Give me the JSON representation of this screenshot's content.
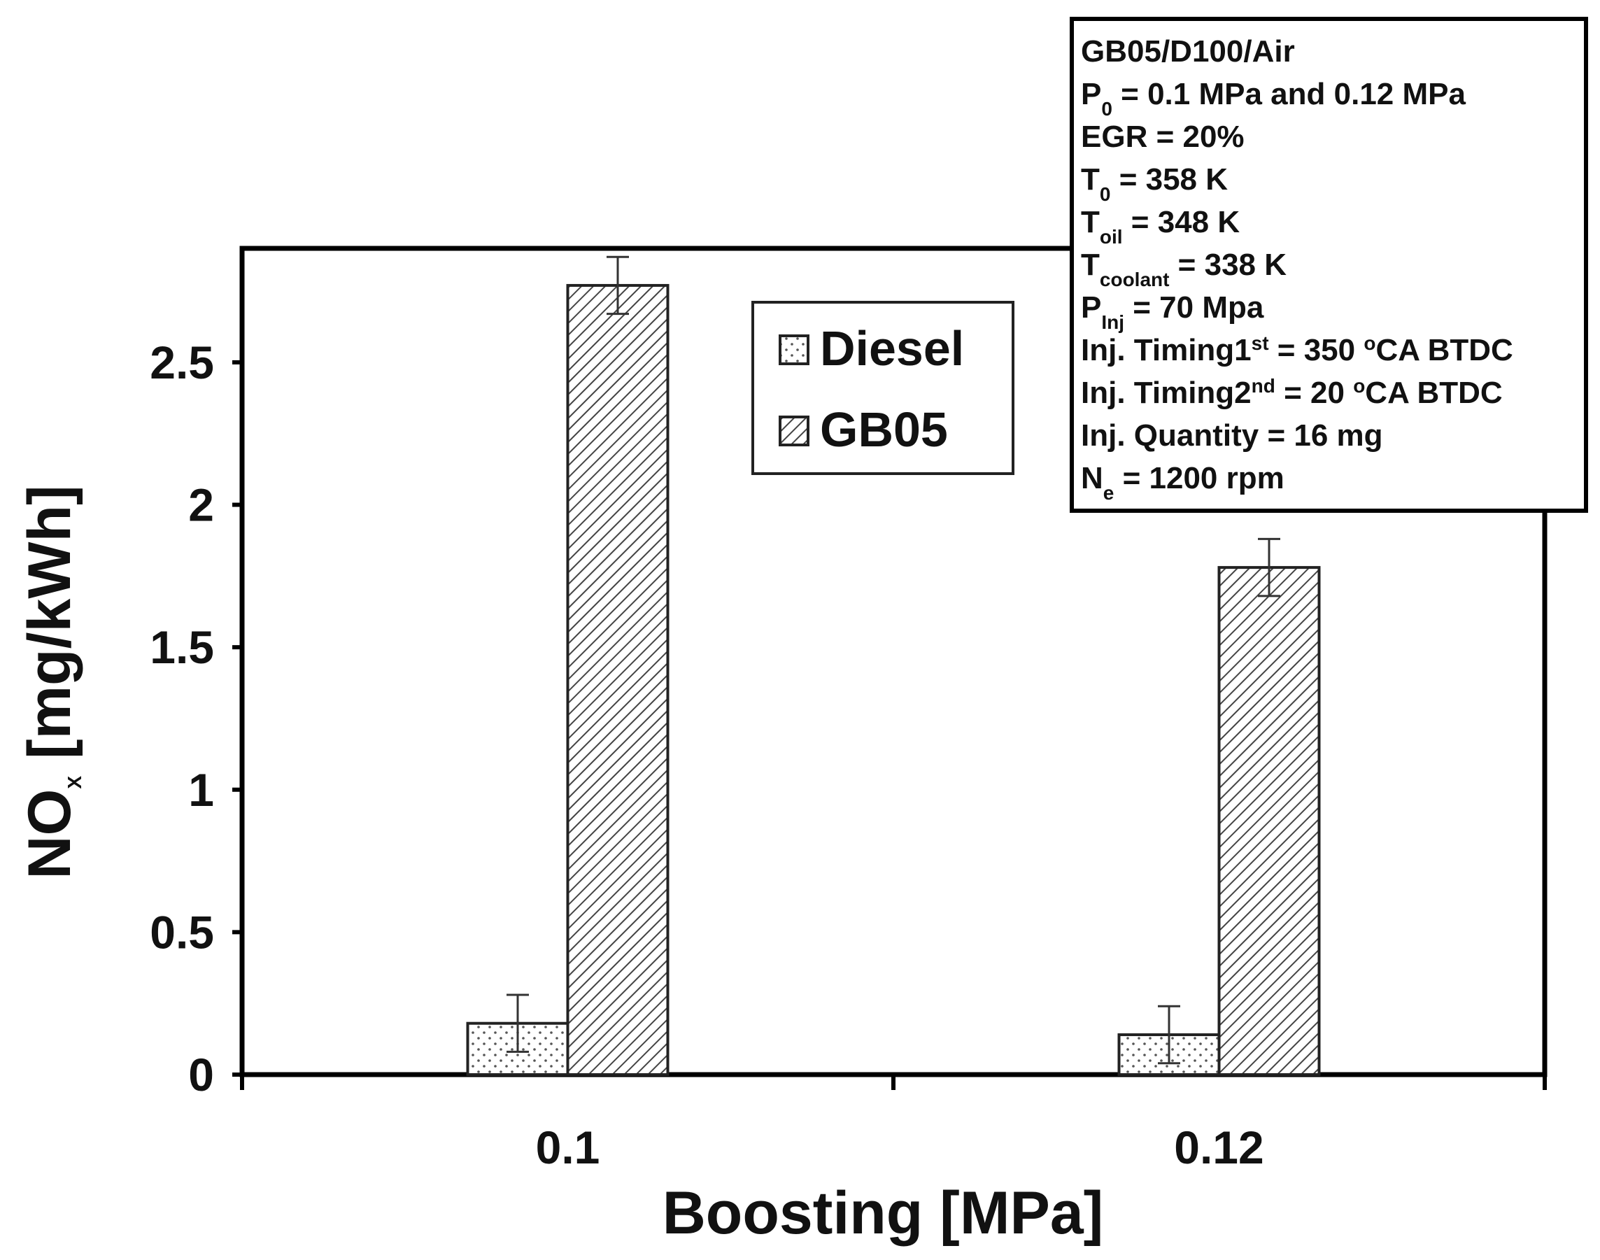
{
  "chart_data": {
    "type": "bar",
    "categories": [
      "0.1",
      "0.12"
    ],
    "series": [
      {
        "name": "Diesel",
        "values": [
          0.18,
          0.14
        ],
        "errors": [
          0.1,
          0.1
        ],
        "pattern": "dots"
      },
      {
        "name": "GB05",
        "values": [
          2.77,
          1.78
        ],
        "errors": [
          0.1,
          0.1
        ],
        "pattern": "hatch"
      }
    ],
    "xlabel": "Boosting [MPa]",
    "ylabel": {
      "main": "NO",
      "sub": "X",
      "rest": " [mg/kWh]"
    },
    "ylim": [
      0,
      2.9
    ],
    "yticks": [
      0,
      0.5,
      1,
      1.5,
      2,
      2.5
    ],
    "ytick_labels": [
      "0",
      "0.5",
      "1",
      "1.5",
      "2",
      "2.5"
    ],
    "legend_position": "top-center",
    "colors": {
      "axis": "#000000",
      "bar_edge": "#222222",
      "fill": "#ffffff",
      "pattern": "#555555"
    }
  },
  "info_box": {
    "lines": [
      {
        "parts": [
          {
            "t": "GB05/D100/Air"
          }
        ]
      },
      {
        "parts": [
          {
            "t": "P"
          },
          {
            "t": "0",
            "sub": true
          },
          {
            "t": " = 0.1 MPa and 0.12 MPa"
          }
        ]
      },
      {
        "parts": [
          {
            "t": "EGR = 20%"
          }
        ]
      },
      {
        "parts": [
          {
            "t": "T"
          },
          {
            "t": "0",
            "sub": true
          },
          {
            "t": " = 358 K"
          }
        ]
      },
      {
        "parts": [
          {
            "t": "T"
          },
          {
            "t": "oil",
            "sub": true
          },
          {
            "t": " = 348 K"
          }
        ]
      },
      {
        "parts": [
          {
            "t": "T"
          },
          {
            "t": "coolant",
            "sub": true
          },
          {
            "t": " = 338 K"
          }
        ]
      },
      {
        "parts": [
          {
            "t": "P"
          },
          {
            "t": "Inj",
            "sub": true
          },
          {
            "t": " = 70 Mpa"
          }
        ]
      },
      {
        "parts": [
          {
            "t": "Inj. Timing1"
          },
          {
            "t": "st",
            "sup": true
          },
          {
            "t": " = 350 "
          },
          {
            "t": "o",
            "sup": true
          },
          {
            "t": "CA BTDC"
          }
        ]
      },
      {
        "parts": [
          {
            "t": "Inj. Timing2"
          },
          {
            "t": "nd",
            "sup": true
          },
          {
            "t": " = 20 "
          },
          {
            "t": "o",
            "sup": true
          },
          {
            "t": "CA BTDC"
          }
        ]
      },
      {
        "parts": [
          {
            "t": "Inj. Quantity  = 16 mg"
          }
        ]
      },
      {
        "parts": [
          {
            "t": "N"
          },
          {
            "t": "e",
            "sub": true
          },
          {
            "t": " = 1200 rpm"
          }
        ]
      }
    ]
  }
}
